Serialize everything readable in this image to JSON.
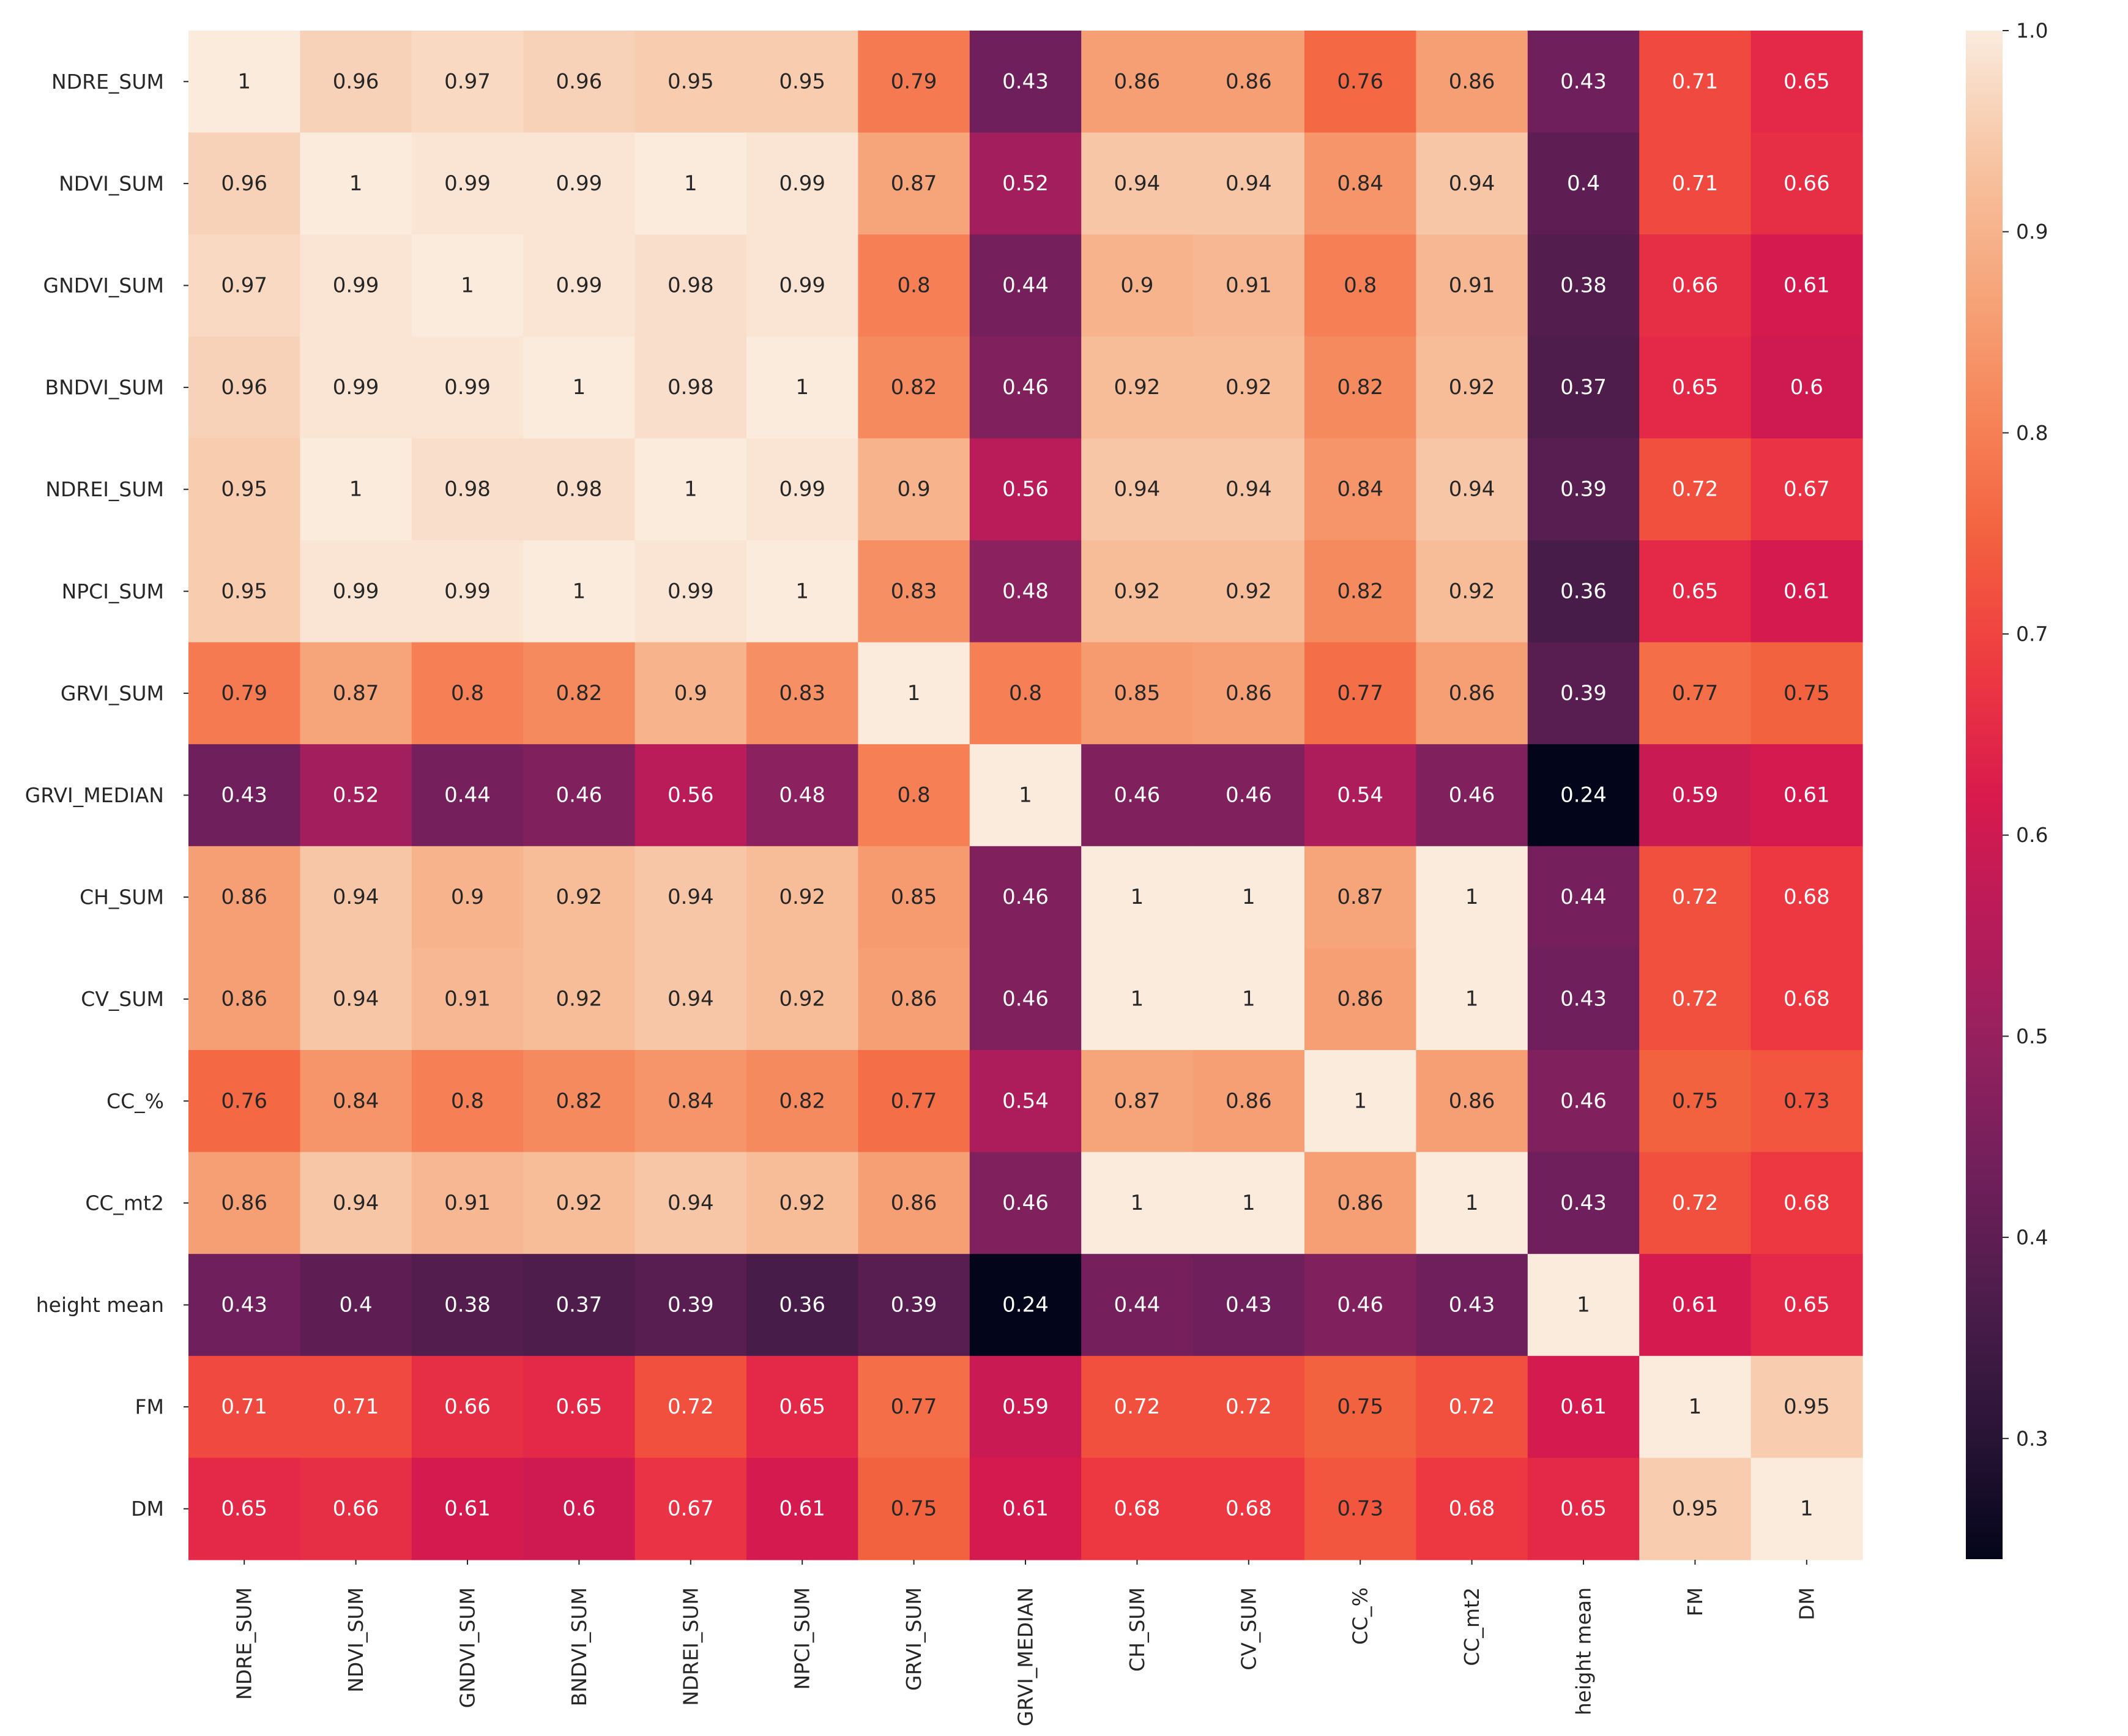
{
  "chart_data": {
    "type": "heatmap",
    "title": "",
    "xlabel": "",
    "ylabel": "",
    "row_labels": [
      "NDRE_SUM",
      "NDVI_SUM",
      "GNDVI_SUM",
      "BNDVI_SUM",
      "NDREI_SUM",
      "NPCI_SUM",
      "GRVI_SUM",
      "GRVI_MEDIAN",
      "CH_SUM",
      "CV_SUM",
      "CC_%",
      "CC_mt2",
      "height mean",
      "FM",
      "DM"
    ],
    "col_labels": [
      "NDRE_SUM",
      "NDVI_SUM",
      "GNDVI_SUM",
      "BNDVI_SUM",
      "NDREI_SUM",
      "NPCI_SUM",
      "GRVI_SUM",
      "GRVI_MEDIAN",
      "CH_SUM",
      "CV_SUM",
      "CC_%",
      "CC_mt2",
      "height mean",
      "FM",
      "DM"
    ],
    "values": [
      [
        1,
        0.96,
        0.97,
        0.96,
        0.95,
        0.95,
        0.79,
        0.43,
        0.86,
        0.86,
        0.76,
        0.86,
        0.43,
        0.71,
        0.65
      ],
      [
        0.96,
        1,
        0.99,
        0.99,
        1,
        0.99,
        0.87,
        0.52,
        0.94,
        0.94,
        0.84,
        0.94,
        0.4,
        0.71,
        0.66
      ],
      [
        0.97,
        0.99,
        1,
        0.99,
        0.98,
        0.99,
        0.8,
        0.44,
        0.9,
        0.91,
        0.8,
        0.91,
        0.38,
        0.66,
        0.61
      ],
      [
        0.96,
        0.99,
        0.99,
        1,
        0.98,
        1,
        0.82,
        0.46,
        0.92,
        0.92,
        0.82,
        0.92,
        0.37,
        0.65,
        0.6
      ],
      [
        0.95,
        1,
        0.98,
        0.98,
        1,
        0.99,
        0.9,
        0.56,
        0.94,
        0.94,
        0.84,
        0.94,
        0.39,
        0.72,
        0.67
      ],
      [
        0.95,
        0.99,
        0.99,
        1,
        0.99,
        1,
        0.83,
        0.48,
        0.92,
        0.92,
        0.82,
        0.92,
        0.36,
        0.65,
        0.61
      ],
      [
        0.79,
        0.87,
        0.8,
        0.82,
        0.9,
        0.83,
        1,
        0.8,
        0.85,
        0.86,
        0.77,
        0.86,
        0.39,
        0.77,
        0.75
      ],
      [
        0.43,
        0.52,
        0.44,
        0.46,
        0.56,
        0.48,
        0.8,
        1,
        0.46,
        0.46,
        0.54,
        0.46,
        0.24,
        0.59,
        0.61
      ],
      [
        0.86,
        0.94,
        0.9,
        0.92,
        0.94,
        0.92,
        0.85,
        0.46,
        1,
        1,
        0.87,
        1,
        0.44,
        0.72,
        0.68
      ],
      [
        0.86,
        0.94,
        0.91,
        0.92,
        0.94,
        0.92,
        0.86,
        0.46,
        1,
        1,
        0.86,
        1,
        0.43,
        0.72,
        0.68
      ],
      [
        0.76,
        0.84,
        0.8,
        0.82,
        0.84,
        0.82,
        0.77,
        0.54,
        0.87,
        0.86,
        1,
        0.86,
        0.46,
        0.75,
        0.73
      ],
      [
        0.86,
        0.94,
        0.91,
        0.92,
        0.94,
        0.92,
        0.86,
        0.46,
        1,
        1,
        0.86,
        1,
        0.43,
        0.72,
        0.68
      ],
      [
        0.43,
        0.4,
        0.38,
        0.37,
        0.39,
        0.36,
        0.39,
        0.24,
        0.44,
        0.43,
        0.46,
        0.43,
        1,
        0.61,
        0.65
      ],
      [
        0.71,
        0.71,
        0.66,
        0.65,
        0.72,
        0.65,
        0.77,
        0.59,
        0.72,
        0.72,
        0.75,
        0.72,
        0.61,
        1,
        0.95
      ],
      [
        0.65,
        0.66,
        0.61,
        0.6,
        0.67,
        0.61,
        0.75,
        0.61,
        0.68,
        0.68,
        0.73,
        0.68,
        0.65,
        0.95,
        1
      ]
    ],
    "colorbar": {
      "min": 0.24,
      "max": 1.0,
      "ticks": [
        0.3,
        0.4,
        0.5,
        0.6,
        0.7,
        0.8,
        0.9,
        1.0
      ],
      "tick_labels": [
        "0.3",
        "0.4",
        "0.5",
        "0.6",
        "0.7",
        "0.8",
        "0.9",
        "1.0"
      ]
    },
    "colormap": [
      "#03051a",
      "#2a1437",
      "#4c1d4b",
      "#6f1f5b",
      "#93215f",
      "#b81b5a",
      "#d91a4d",
      "#ee3a41",
      "#f3603e",
      "#f6855a",
      "#f6a67b",
      "#f7c4a3",
      "#faebdd"
    ],
    "grid": false,
    "legend": "colorbar-right"
  }
}
